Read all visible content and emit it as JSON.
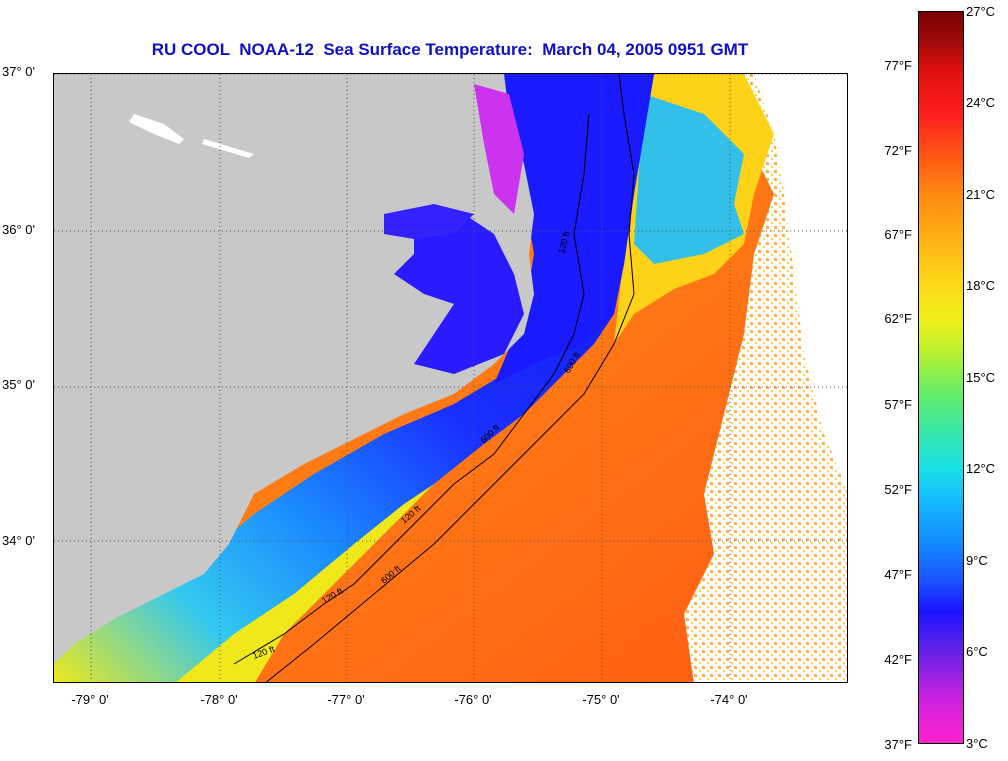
{
  "title": "RU COOL  NOAA-12  Sea Surface Temperature:  March 04, 2005 0951 GMT",
  "map": {
    "lat_labels": [
      "37° 0'",
      "36° 0'",
      "35° 0'",
      "34° 0'"
    ],
    "lon_labels": [
      "-79° 0'",
      "-78° 0'",
      "-77° 0'",
      "-76° 0'",
      "-75° 0'",
      "-74° 0'"
    ],
    "contour_labels": [
      "600 ft",
      "120 ft",
      "120 ft",
      "120 ft",
      "600 ft",
      "600 ft",
      "120 ft"
    ],
    "colors": {
      "land": "#c8c8c8",
      "cloud": "#ffffff",
      "gulf_stream": "#ff8a14",
      "shelf_cold": "#1a1aff",
      "sound": "#cc33ee"
    }
  },
  "colorbar": {
    "celsius_ticks": [
      "27°C",
      "24°C",
      "21°C",
      "18°C",
      "15°C",
      "12°C",
      "9°C",
      "6°C",
      "3°C"
    ],
    "fahrenheit_ticks": [
      "77°F",
      "72°F",
      "67°F",
      "62°F",
      "57°F",
      "52°F",
      "47°F",
      "42°F",
      "37°F"
    ],
    "range_celsius": [
      3,
      27
    ],
    "range_fahrenheit": [
      37,
      80.6
    ]
  }
}
